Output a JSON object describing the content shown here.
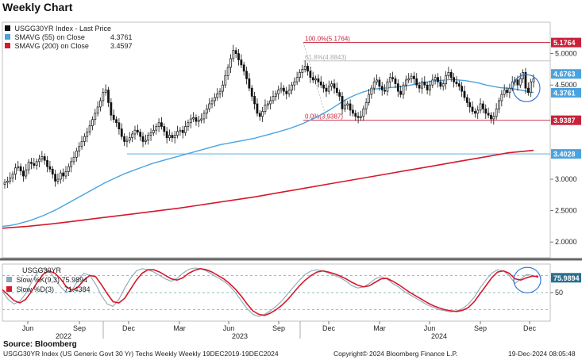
{
  "title": "Weekly Chart",
  "source": "Source: Bloomberg",
  "footer": {
    "left": "USGG30YR Index (US Generic Govt 30 Yr) Techs Weekly  Weekly 19DEC2019-19DEC2024",
    "center": "Copyright© 2024 Bloomberg Finance L.P.",
    "right": "19-Dec-2024 08:05:48"
  },
  "colors": {
    "price": "#111111",
    "sma55": "#4aa3df",
    "sma200": "#d6182b",
    "fib": "#c9213a",
    "support": "#4aa3df",
    "slowK": "#8aa8b8",
    "slowD": "#d6182b",
    "circle": "#2a6fd1"
  },
  "chart_data": [
    {
      "type": "candlestick",
      "legend": [
        {
          "label": "USGG30YR Index - Last Price",
          "value": ""
        },
        {
          "label": "SMAVG (55)  on Close",
          "value": "4.3761"
        },
        {
          "label": "SMAVG (200)  on Close",
          "value": "3.4597"
        }
      ],
      "ylim": [
        1.75,
        5.5
      ],
      "yticks": [
        "5.0000",
        "4.5000",
        "3.0000",
        "2.5000",
        "2.0000"
      ],
      "x_month_labels": [
        "Jun",
        "Sep",
        "Dec",
        "Mar",
        "Jun",
        "Sep",
        "Dec",
        "Mar",
        "Jun",
        "Sep",
        "Dec"
      ],
      "x_year_labels": [
        "2022",
        "2023",
        "2024"
      ],
      "price_tags": [
        {
          "text": "5.1764",
          "value": 5.1764,
          "color": "#c9213a"
        },
        {
          "text": "4.6763",
          "value": 4.6763,
          "color": "#4aa3df"
        },
        {
          "text": "4.3761",
          "value": 4.3761,
          "color": "#4aa3df"
        },
        {
          "text": "3.9387",
          "value": 3.9387,
          "color": "#c9213a"
        },
        {
          "text": "3.4028",
          "value": 3.4028,
          "color": "#4aa3df"
        }
      ],
      "fib_levels": [
        {
          "label": "100.0%(5.1764)",
          "value": 5.1764
        },
        {
          "label": "61.8%(4.8843)",
          "value": 4.8843
        },
        {
          "label": "0.0%(3.9387)",
          "value": 3.9387
        }
      ],
      "support_level": 3.4028,
      "closes": [
        2.95,
        2.97,
        3.02,
        3.08,
        3.18,
        3.2,
        3.13,
        3.05,
        3.15,
        3.27,
        3.25,
        3.22,
        3.28,
        3.32,
        3.36,
        3.3,
        3.2,
        3.16,
        3.08,
        2.97,
        3.0,
        3.1,
        3.05,
        3.12,
        3.2,
        3.28,
        3.35,
        3.45,
        3.52,
        3.6,
        3.68,
        3.75,
        3.85,
        3.95,
        4.05,
        4.15,
        4.25,
        4.38,
        4.42,
        4.22,
        4.02,
        3.95,
        3.9,
        3.8,
        3.68,
        3.6,
        3.62,
        3.66,
        3.72,
        3.78,
        3.75,
        3.68,
        3.6,
        3.62,
        3.7,
        3.74,
        3.78,
        3.84,
        3.9,
        3.84,
        3.76,
        3.66,
        3.7,
        3.66,
        3.7,
        3.76,
        3.78,
        3.74,
        3.84,
        3.9,
        3.96,
        3.98,
        3.92,
        3.94,
        3.96,
        4.05,
        4.12,
        4.2,
        4.25,
        4.3,
        4.36,
        4.4,
        4.5,
        4.65,
        4.78,
        4.92,
        5.05,
        5.0,
        4.9,
        4.82,
        4.72,
        4.6,
        4.45,
        4.32,
        4.2,
        4.05,
        4.0,
        4.08,
        4.18,
        4.2,
        4.25,
        4.32,
        4.36,
        4.42,
        4.45,
        4.4,
        4.36,
        4.42,
        4.5,
        4.55,
        4.62,
        4.7,
        4.75,
        4.8,
        4.72,
        4.62,
        4.58,
        4.6,
        4.55,
        4.5,
        4.45,
        4.4,
        4.48,
        4.52,
        4.45,
        4.38,
        4.32,
        4.12,
        4.18,
        4.2,
        4.1,
        4.05,
        4.0,
        3.98,
        4.0,
        4.12,
        4.22,
        4.35,
        4.45,
        4.55,
        4.58,
        4.48,
        4.42,
        4.4,
        4.55,
        4.62,
        4.6,
        4.52,
        4.4,
        4.35,
        4.5,
        4.58,
        4.6,
        4.64,
        4.6,
        4.5,
        4.45,
        4.55,
        4.5,
        4.42,
        4.5,
        4.58,
        4.62,
        4.55,
        4.48,
        4.52,
        4.65,
        4.7,
        4.62,
        4.55,
        4.52,
        4.48,
        4.4,
        4.3,
        4.22,
        4.15,
        4.08,
        4.05,
        4.1,
        4.2,
        4.12,
        4.05,
        4.02,
        3.96,
        4.0,
        4.12,
        4.25,
        4.35,
        4.42,
        4.38,
        4.45,
        4.55,
        4.58,
        4.5,
        4.6,
        4.7,
        4.45,
        4.38,
        4.55,
        4.6
      ],
      "sma55": [
        2.25,
        2.26,
        2.28,
        2.31,
        2.34,
        2.38,
        2.42,
        2.47,
        2.52,
        2.58,
        2.64,
        2.7,
        2.76,
        2.82,
        2.88,
        2.94,
        2.99,
        3.04,
        3.09,
        3.13,
        3.17,
        3.21,
        3.25,
        3.28,
        3.31,
        3.34,
        3.37,
        3.4,
        3.43,
        3.46,
        3.49,
        3.52,
        3.55,
        3.57,
        3.59,
        3.61,
        3.63,
        3.65,
        3.68,
        3.71,
        3.74,
        3.77,
        3.8,
        3.84,
        3.88,
        3.93,
        3.98,
        4.04,
        4.1,
        4.17,
        4.24,
        4.3,
        4.35,
        4.39,
        4.42,
        4.44,
        4.45,
        4.46,
        4.47,
        4.48,
        4.5,
        4.52,
        4.54,
        4.56,
        4.57,
        4.58,
        4.59,
        4.58,
        4.57,
        4.55,
        4.53,
        4.5,
        4.48,
        4.46,
        4.45,
        4.44,
        4.42,
        4.4,
        4.38
      ],
      "sma200": [
        2.22,
        2.25,
        2.29,
        2.34,
        2.39,
        2.44,
        2.49,
        2.54,
        2.6,
        2.66,
        2.72,
        2.79,
        2.86,
        2.93,
        3.0,
        3.07,
        3.14,
        3.21,
        3.28,
        3.35,
        3.42,
        3.46
      ]
    },
    {
      "type": "line",
      "legend_title": "USGG30YR",
      "legend": [
        {
          "label": "Slow %K(9,3)",
          "value": "75.9894"
        },
        {
          "label": "Slow %D(3)",
          "value": "71.4384"
        }
      ],
      "ylim": [
        0,
        100
      ],
      "ytick": "50",
      "levels": [
        80,
        50,
        20
      ],
      "value_tag": "75.9894",
      "slow_k": [
        52,
        38,
        30,
        35,
        48,
        68,
        85,
        92,
        88,
        75,
        60,
        50,
        55,
        72,
        84,
        80,
        65,
        45,
        30,
        26,
        38,
        58,
        75,
        88,
        92,
        90,
        86,
        80,
        74,
        70,
        75,
        84,
        91,
        93,
        92,
        88,
        82,
        76,
        70,
        62,
        50,
        36,
        22,
        12,
        8,
        12,
        18,
        26,
        36,
        48,
        60,
        72,
        82,
        88,
        90,
        88,
        84,
        80,
        76,
        70,
        62,
        58,
        60,
        66,
        74,
        78,
        74,
        66,
        60,
        52,
        46,
        40,
        34,
        28,
        24,
        20,
        18,
        16,
        18,
        22,
        30,
        42,
        58,
        72,
        84,
        90,
        88,
        80,
        66,
        74,
        82,
        80,
        76
      ],
      "slow_d": [
        55,
        46,
        36,
        32,
        38,
        52,
        68,
        82,
        88,
        84,
        74,
        60,
        54,
        60,
        72,
        80,
        78,
        64,
        48,
        34,
        32,
        40,
        56,
        72,
        84,
        90,
        90,
        86,
        80,
        74,
        72,
        76,
        84,
        89,
        92,
        90,
        86,
        80,
        74,
        66,
        56,
        44,
        30,
        18,
        12,
        10,
        14,
        20,
        28,
        38,
        50,
        62,
        72,
        80,
        86,
        88,
        86,
        83,
        79,
        74,
        68,
        63,
        60,
        62,
        68,
        74,
        75,
        70,
        64,
        57,
        50,
        44,
        38,
        32,
        27,
        23,
        20,
        18,
        17,
        19,
        24,
        34,
        48,
        62,
        76,
        86,
        88,
        84,
        74,
        72,
        76,
        79,
        78
      ]
    }
  ]
}
